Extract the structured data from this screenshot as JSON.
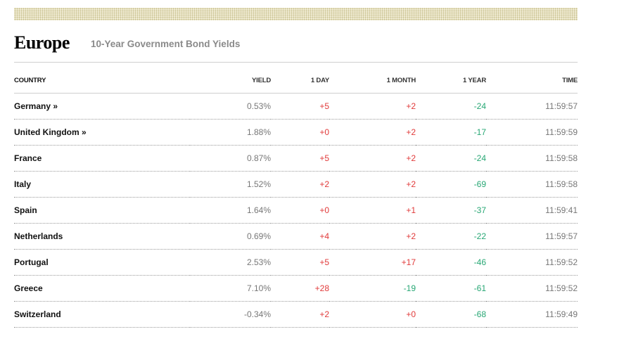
{
  "region": {
    "title": "Europe",
    "subtitle": "10-Year Government Bond Yields"
  },
  "columns": [
    "COUNTRY",
    "YIELD",
    "1 DAY",
    "1 MONTH",
    "1 YEAR",
    "TIME"
  ],
  "rows": [
    {
      "country": "Germany »",
      "yield": "0.53%",
      "day": "+5",
      "month": "+2",
      "year": "-24",
      "time": "11:59:57"
    },
    {
      "country": "United Kingdom »",
      "yield": "1.88%",
      "day": "+0",
      "month": "+2",
      "year": "-17",
      "time": "11:59:59"
    },
    {
      "country": "France",
      "yield": "0.87%",
      "day": "+5",
      "month": "+2",
      "year": "-24",
      "time": "11:59:58"
    },
    {
      "country": "Italy",
      "yield": "1.52%",
      "day": "+2",
      "month": "+2",
      "year": "-69",
      "time": "11:59:58"
    },
    {
      "country": "Spain",
      "yield": "1.64%",
      "day": "+0",
      "month": "+1",
      "year": "-37",
      "time": "11:59:41"
    },
    {
      "country": "Netherlands",
      "yield": "0.69%",
      "day": "+4",
      "month": "+2",
      "year": "-22",
      "time": "11:59:57"
    },
    {
      "country": "Portugal",
      "yield": "2.53%",
      "day": "+5",
      "month": "+17",
      "year": "-46",
      "time": "11:59:52"
    },
    {
      "country": "Greece",
      "yield": "7.10%",
      "day": "+28",
      "month": "-19",
      "year": "-61",
      "time": "11:59:52"
    },
    {
      "country": "Switzerland",
      "yield": "-0.34%",
      "day": "+2",
      "month": "+0",
      "year": "-68",
      "time": "11:59:49"
    }
  ],
  "colors": {
    "positive": "#e13a3a",
    "negative": "#27a774",
    "muted": "#777777",
    "banner": "#f3efd8"
  }
}
